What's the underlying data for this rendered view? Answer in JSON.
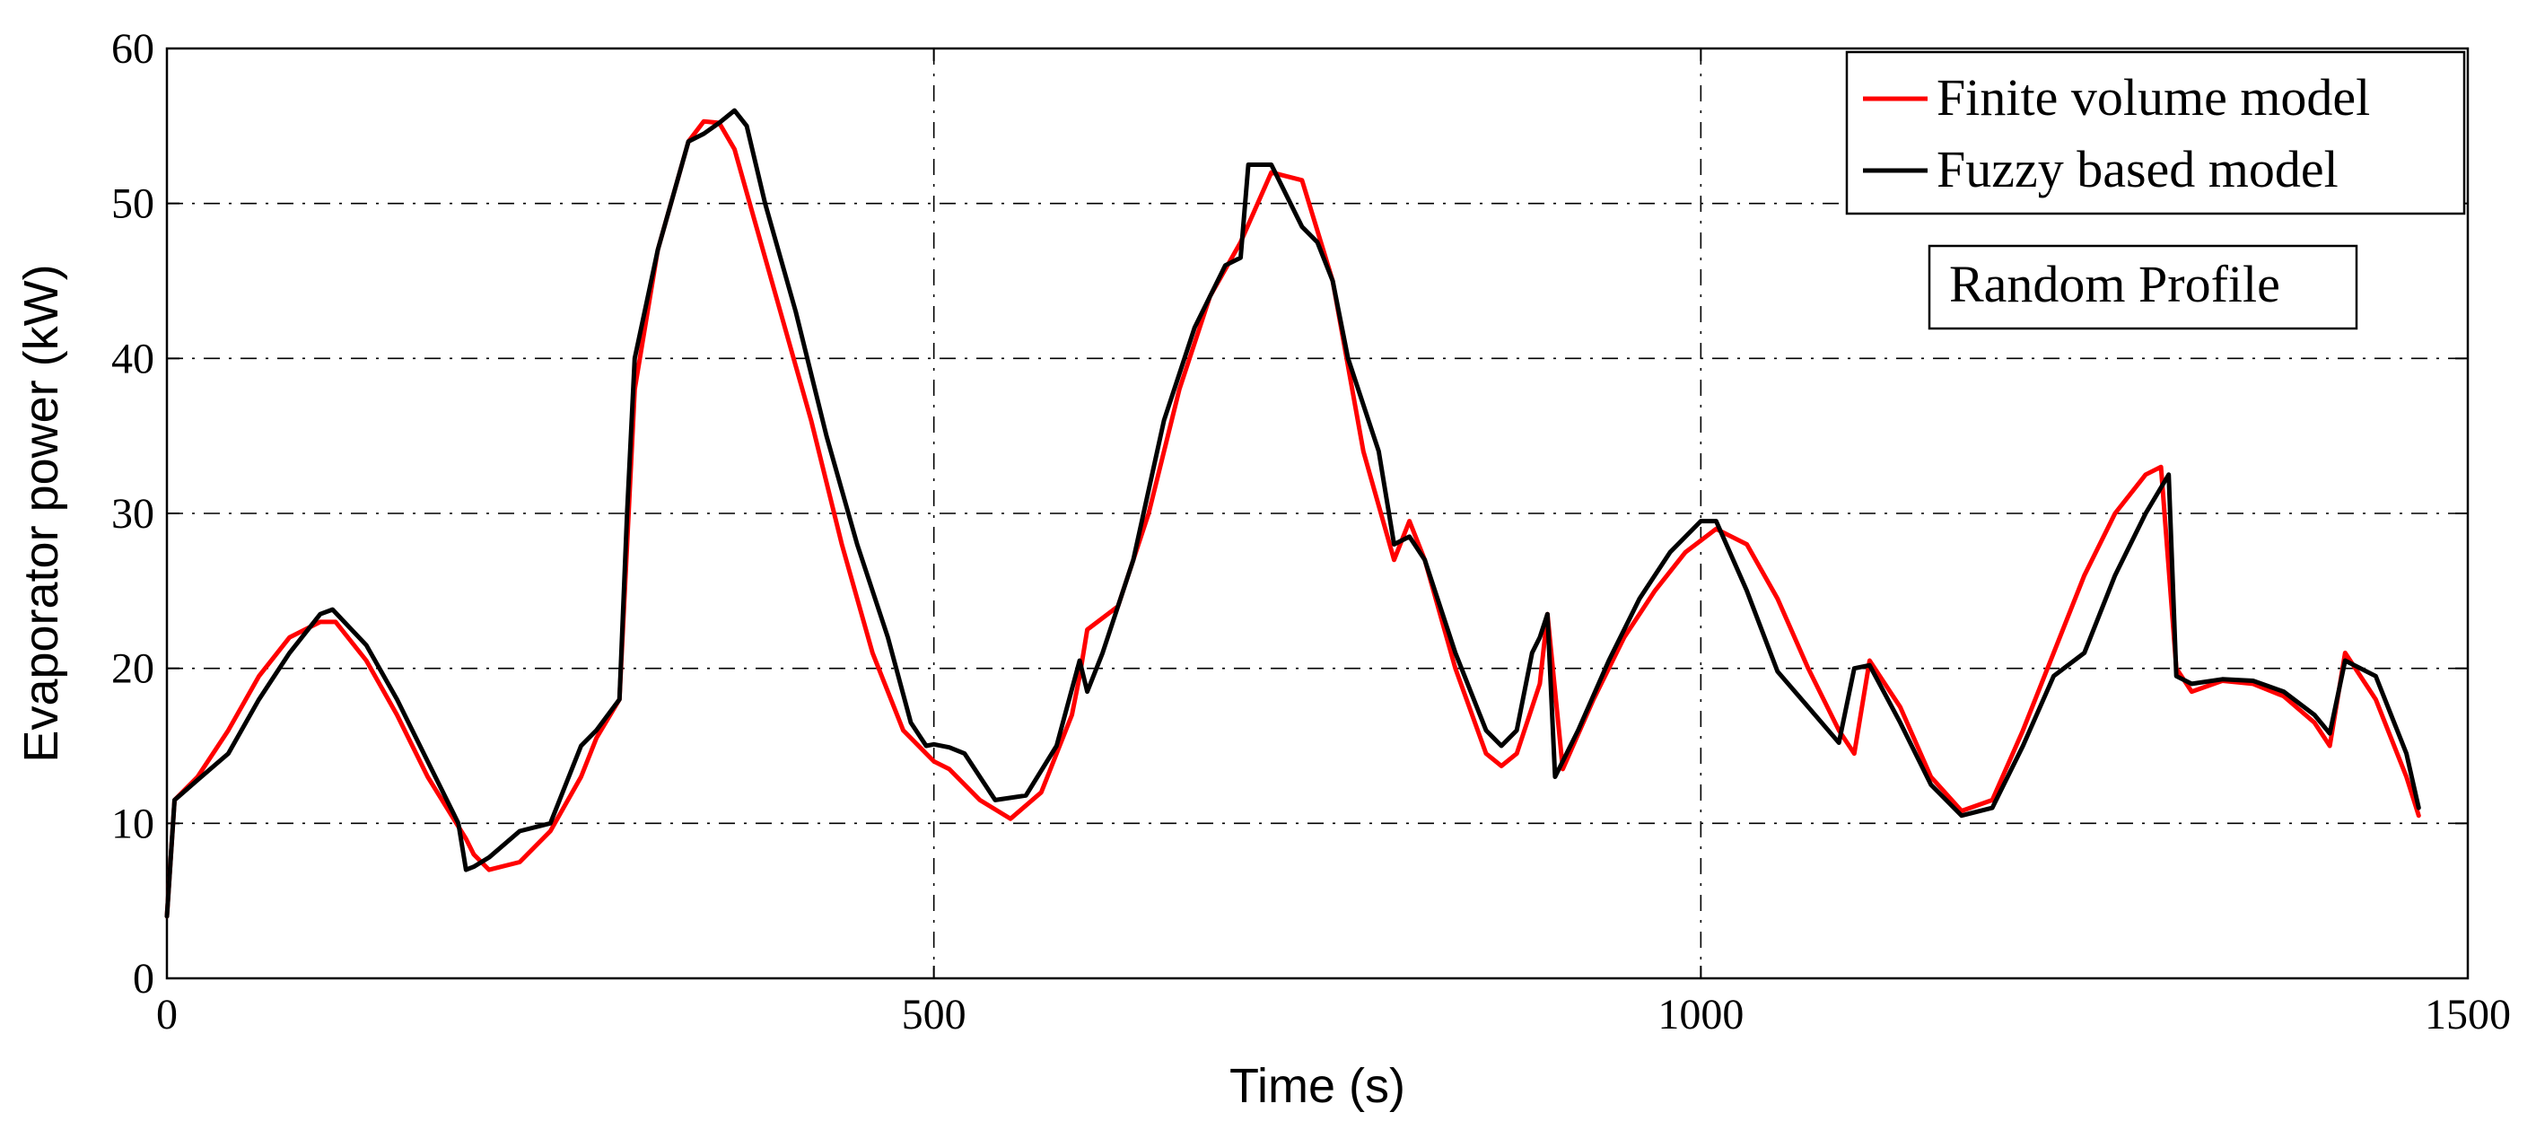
{
  "chart_data": {
    "type": "line",
    "title": "",
    "xlabel": "Time (s)",
    "ylabel": "Evaporator power (kW)",
    "xlim": [
      0,
      1500
    ],
    "ylim": [
      0,
      60
    ],
    "xticks": [
      0,
      500,
      1000,
      1500
    ],
    "yticks": [
      0,
      10,
      20,
      30,
      40,
      50,
      60
    ],
    "xtick_labels": [
      "0",
      "500",
      "1000",
      "1500"
    ],
    "ytick_labels": [
      "0",
      "10",
      "20",
      "30",
      "40",
      "50",
      "60"
    ],
    "grid": true,
    "legend_position": "top-right",
    "annotation": "Random Profile",
    "series": [
      {
        "name": "Finite volume model",
        "color": "#ff0000",
        "x": [
          0,
          5,
          20,
          40,
          60,
          80,
          100,
          110,
          130,
          150,
          170,
          195,
          200,
          210,
          230,
          250,
          270,
          280,
          295,
          300,
          305,
          320,
          340,
          350,
          360,
          370,
          380,
          400,
          420,
          440,
          460,
          480,
          495,
          500,
          510,
          530,
          550,
          570,
          590,
          595,
          600,
          620,
          640,
          660,
          680,
          700,
          720,
          740,
          760,
          780,
          800,
          810,
          820,
          840,
          860,
          870,
          880,
          895,
          900,
          910,
          930,
          950,
          970,
          990,
          1010,
          1030,
          1050,
          1070,
          1090,
          1100,
          1110,
          1130,
          1150,
          1170,
          1190,
          1210,
          1230,
          1250,
          1270,
          1290,
          1300,
          1310,
          1320,
          1340,
          1360,
          1380,
          1400,
          1410,
          1420,
          1440,
          1460,
          1468
        ],
        "y": [
          4,
          11.5,
          13,
          16,
          19.5,
          22,
          23,
          23,
          20.5,
          17,
          13,
          9,
          8,
          7,
          7.5,
          9.5,
          13,
          15.5,
          18,
          28,
          38,
          47,
          54,
          55.3,
          55.2,
          53.5,
          50,
          43,
          36,
          28,
          21,
          16,
          14.5,
          14,
          13.5,
          11.5,
          10.3,
          12,
          17,
          19.5,
          22.5,
          24,
          30,
          38,
          44,
          47.5,
          52,
          51.5,
          45,
          34,
          27,
          29.5,
          27,
          20,
          14.5,
          13.7,
          14.5,
          19,
          23.5,
          13.5,
          18,
          22,
          25,
          27.5,
          29,
          28,
          24.5,
          20,
          16,
          14.5,
          20.5,
          17.5,
          13,
          10.8,
          11.5,
          16,
          21,
          26,
          30,
          32.5,
          33,
          20,
          18.5,
          19.2,
          19,
          18.2,
          16.5,
          15,
          21,
          18,
          13,
          10.5
        ]
      },
      {
        "name": "Fuzzy based model",
        "color": "#000000",
        "x": [
          0,
          5,
          20,
          40,
          60,
          80,
          100,
          108,
          130,
          150,
          170,
          190,
          195,
          200,
          210,
          230,
          250,
          270,
          280,
          295,
          300,
          305,
          320,
          340,
          350,
          360,
          370,
          378,
          390,
          410,
          430,
          450,
          470,
          485,
          495,
          500,
          510,
          520,
          540,
          560,
          580,
          595,
          600,
          610,
          630,
          650,
          670,
          690,
          700,
          705,
          720,
          740,
          750,
          760,
          770,
          790,
          800,
          810,
          820,
          840,
          860,
          870,
          880,
          890,
          895,
          900,
          905,
          920,
          940,
          960,
          980,
          1000,
          1010,
          1030,
          1050,
          1070,
          1090,
          1100,
          1110,
          1130,
          1150,
          1170,
          1190,
          1210,
          1230,
          1250,
          1270,
          1290,
          1305,
          1310,
          1320,
          1340,
          1360,
          1380,
          1400,
          1410,
          1420,
          1440,
          1460,
          1468
        ],
        "y": [
          4,
          11.5,
          12.8,
          14.5,
          18,
          21,
          23.5,
          23.8,
          21.5,
          18,
          14,
          10,
          7,
          7.2,
          7.8,
          9.5,
          10,
          15,
          16,
          18,
          30,
          40,
          47,
          54,
          54.5,
          55.2,
          56,
          55,
          50,
          43,
          35,
          28,
          22,
          16.5,
          15,
          15.1,
          14.9,
          14.5,
          11.5,
          11.8,
          15,
          20.5,
          18.5,
          21,
          27,
          36,
          42,
          46,
          46.5,
          52.5,
          52.5,
          48.5,
          47.5,
          45,
          40,
          34,
          28,
          28.5,
          27,
          21,
          16,
          15,
          16,
          21,
          22,
          23.5,
          13,
          16,
          20.5,
          24.5,
          27.5,
          29.5,
          29.5,
          25,
          19.8,
          17.5,
          15.2,
          20,
          20.2,
          16.5,
          12.5,
          10.5,
          11,
          15,
          19.5,
          21,
          26,
          30,
          32.5,
          19.5,
          19,
          19.3,
          19.2,
          18.5,
          17,
          15.8,
          20.5,
          19.5,
          14.5,
          11
        ]
      }
    ]
  }
}
